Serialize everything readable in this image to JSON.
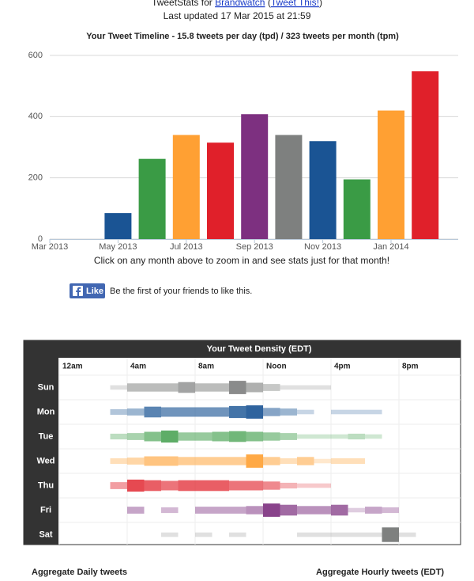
{
  "header": {
    "prefix": "TweetStats for",
    "user": "Brandwatch",
    "open": "(",
    "share": "Tweet This!",
    "close": ")",
    "updated": "Last updated 17 Mar 2015 at 21:59"
  },
  "chart_data": {
    "type": "bar",
    "title": "Your Tweet Timeline - 15.8 tweets per day (tpd) / 323 tweets per month (tpm)",
    "categories": [
      "Mar 2013",
      null,
      "May 2013",
      null,
      "Jul 2013",
      null,
      "Sep 2013",
      null,
      "Nov 2013",
      null,
      "Jan 2014",
      null
    ],
    "values": [
      0,
      0,
      85,
      262,
      340,
      315,
      408,
      340,
      320,
      195,
      420,
      548
    ],
    "colors": [
      "#7d3080",
      "#7e807f",
      "#1a5494",
      "#3a9b45",
      "#ffa033",
      "#e0202a",
      "#7d3080",
      "#7e807f",
      "#1a5494",
      "#3a9b45",
      "#ffa033",
      "#e0202a"
    ],
    "ylim": [
      0,
      600
    ],
    "yticks": [
      0,
      200,
      400,
      600
    ],
    "grid": true
  },
  "note": "Click on any month above to zoom in and see stats just for that month!",
  "like": {
    "label": "Like",
    "text": "Be the first of your friends to like this."
  },
  "density": {
    "title": "Your Tweet Density (EDT)",
    "hours": [
      "12am",
      "4am",
      "8am",
      "Noon",
      "4pm",
      "8pm"
    ],
    "days": [
      {
        "name": "Sun",
        "color": "#7e807f",
        "values": [
          0,
          0,
          0,
          1,
          4,
          4,
          4,
          6,
          4,
          4,
          8,
          5,
          3,
          1,
          1,
          1,
          0,
          0,
          0,
          0,
          0,
          0,
          0,
          0
        ]
      },
      {
        "name": "Mon",
        "color": "#1a5494",
        "values": [
          0,
          0,
          0,
          2,
          3,
          6,
          5,
          5,
          5,
          5,
          7,
          8,
          4,
          3,
          1,
          0,
          1,
          1,
          1,
          0,
          0,
          0,
          0,
          0
        ]
      },
      {
        "name": "Tue",
        "color": "#3a9b45",
        "values": [
          0,
          0,
          0,
          2,
          3,
          5,
          7,
          4,
          4,
          5,
          6,
          5,
          4,
          3,
          1,
          1,
          1,
          2,
          1,
          0,
          0,
          0,
          0,
          0
        ]
      },
      {
        "name": "Wed",
        "color": "#ffa033",
        "values": [
          0,
          0,
          0,
          2,
          3,
          5,
          5,
          4,
          4,
          4,
          4,
          8,
          4,
          2,
          4,
          1,
          2,
          2,
          0,
          0,
          0,
          0,
          0,
          0
        ]
      },
      {
        "name": "Thu",
        "color": "#e0202a",
        "values": [
          0,
          0,
          0,
          3,
          7,
          6,
          5,
          6,
          6,
          6,
          5,
          5,
          4,
          2,
          1,
          1,
          0,
          0,
          0,
          0,
          0,
          0,
          0,
          0
        ]
      },
      {
        "name": "Fri",
        "color": "#7d3080",
        "values": [
          0,
          0,
          0,
          0,
          3,
          0,
          2,
          0,
          3,
          3,
          3,
          4,
          8,
          6,
          4,
          4,
          6,
          1,
          3,
          2,
          0,
          0,
          0,
          0
        ]
      },
      {
        "name": "Sat",
        "color": "#7e807f",
        "values": [
          0,
          0,
          0,
          0,
          0,
          0,
          1,
          0,
          1,
          0,
          1,
          0,
          0,
          0,
          1,
          1,
          1,
          1,
          1,
          9,
          1,
          0,
          0,
          0
        ]
      }
    ]
  },
  "footer": {
    "daily": "Aggregate Daily tweets",
    "hourly": "Aggregate Hourly tweets (EDT)"
  }
}
